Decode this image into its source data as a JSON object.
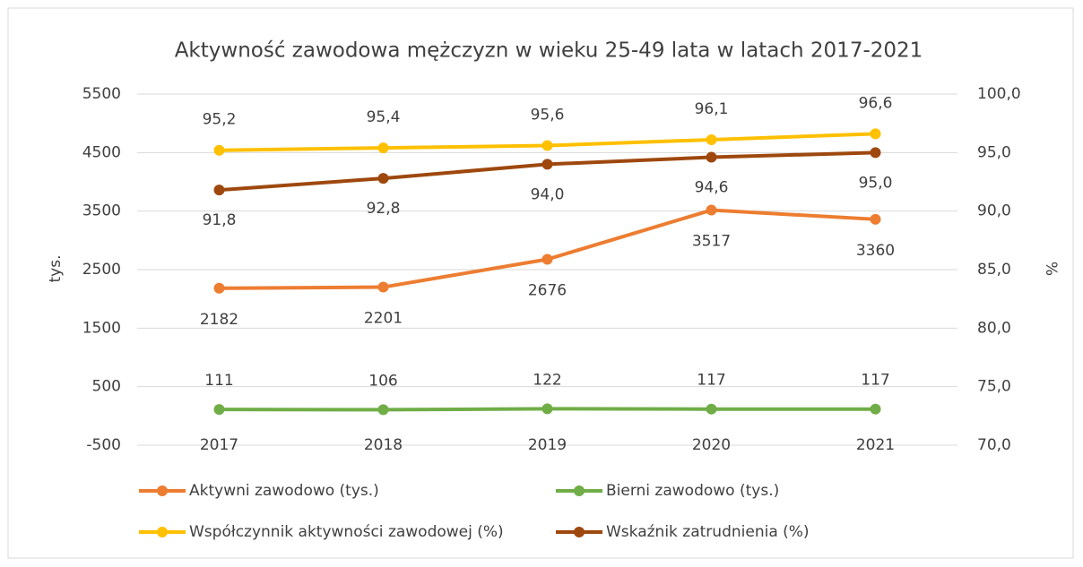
{
  "chart_data": {
    "type": "line",
    "title": "Aktywność zawodowa mężczyzn w wieku 25-49 lata w latach 2017-2021",
    "y_label": "tys.",
    "y2_label": "%",
    "categories": [
      "2017",
      "2018",
      "2019",
      "2020",
      "2021"
    ],
    "ylim": [
      -500,
      5500
    ],
    "yticks": [
      -500,
      500,
      1500,
      2500,
      3500,
      4500,
      5500
    ],
    "y2lim": [
      70,
      100
    ],
    "y2ticks": [
      {
        "value": 70,
        "label": "70,0"
      },
      {
        "value": 75,
        "label": "75,0"
      },
      {
        "value": 80,
        "label": "80,0"
      },
      {
        "value": 85,
        "label": "85,0"
      },
      {
        "value": 90,
        "label": "90,0"
      },
      {
        "value": 95,
        "label": "95,0"
      },
      {
        "value": 100,
        "label": "100,0"
      }
    ],
    "grid": true,
    "legend": "bottom",
    "series": [
      {
        "name": "Aktywni zawodowo (tys.)",
        "color": "#ed7d31",
        "values": [
          2182,
          2201,
          2676,
          3517,
          3360
        ]
      },
      {
        "name": "Bierni zawodowo (tys.)",
        "color": "#70ad47",
        "values": [
          111,
          106,
          122,
          117,
          117
        ]
      },
      {
        "name": "Współczynnik aktywności zawodowej (%)",
        "color": "#ffc000",
        "axis": "y2",
        "values": [
          95.2,
          95.4,
          95.6,
          96.1,
          96.6
        ],
        "value_labels": [
          "95,2",
          "95,4",
          "95,6",
          "96,1",
          "96,6"
        ]
      },
      {
        "name": "Wskaźnik zatrudnienia (%)",
        "color": "#9e480e",
        "axis": "y2",
        "values": [
          91.8,
          92.8,
          94.0,
          94.6,
          95.0
        ],
        "value_labels": [
          "91,8",
          "92,8",
          "94,0",
          "94,6",
          "95,0"
        ]
      }
    ]
  }
}
